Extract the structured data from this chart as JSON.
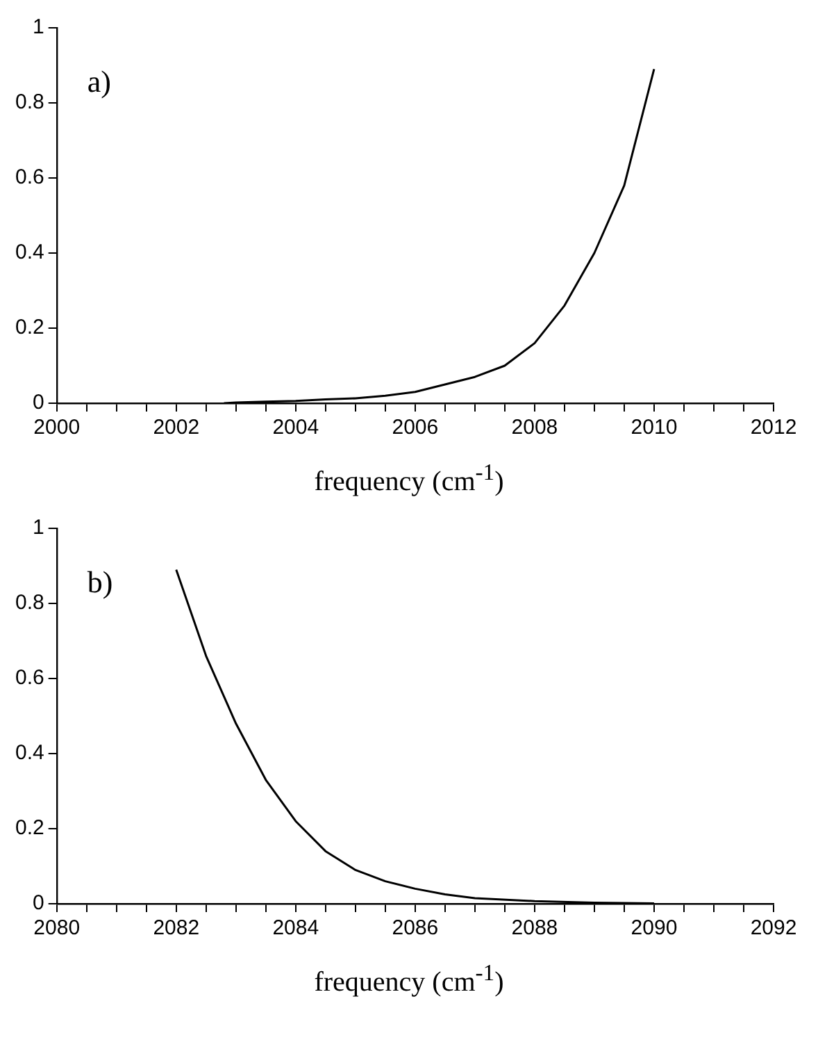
{
  "chart_data": [
    {
      "type": "line",
      "xlabel": "frequency (cm$^{-1}$)",
      "annotations": [
        "a)"
      ],
      "x": [
        2002.8,
        2003,
        2003.5,
        2004,
        2004.5,
        2005,
        2005.5,
        2006,
        2006.5,
        2007,
        2007.5,
        2008,
        2008.5,
        2009,
        2009.5,
        2010
      ],
      "series": [
        {
          "color": "#000000",
          "values": [
            0,
            0.002,
            0.004,
            0.006,
            0.01,
            0.013,
            0.02,
            0.03,
            0.05,
            0.07,
            0.1,
            0.16,
            0.26,
            0.4,
            0.58,
            0.89
          ]
        }
      ],
      "xlim": [
        2000,
        2012
      ],
      "xticks": [
        2000,
        {
          "value": 2000.5,
          "label": null
        },
        {
          "value": 2001,
          "label": null
        },
        {
          "value": 2001.5,
          "label": null
        },
        2002,
        {
          "value": 2002.5,
          "label": null
        },
        {
          "value": 2003,
          "label": null
        },
        {
          "value": 2003.5,
          "label": null
        },
        2004,
        {
          "value": 2004.5,
          "label": null
        },
        {
          "value": 2005,
          "label": null
        },
        {
          "value": 2005.5,
          "label": null
        },
        2006,
        {
          "value": 2006.5,
          "label": null
        },
        {
          "value": 2007,
          "label": null
        },
        {
          "value": 2007.5,
          "label": null
        },
        2008,
        {
          "value": 2008.5,
          "label": null
        },
        {
          "value": 2009,
          "label": null
        },
        {
          "value": 2009.5,
          "label": null
        },
        2010,
        {
          "value": 2010.5,
          "label": null
        },
        {
          "value": 2011,
          "label": null
        },
        {
          "value": 2011.5,
          "label": null
        },
        2012
      ],
      "ylim": [
        0,
        1
      ],
      "yticks": [
        0,
        0.2,
        0.4,
        0.6,
        0.8,
        1
      ],
      "grid": false,
      "legend": false,
      "marker": "none",
      "line_style": "solid"
    },
    {
      "type": "line",
      "xlabel": "frequency (cm$^{-1}$)",
      "annotations": [
        "b)"
      ],
      "x": [
        2082,
        2082.5,
        2083,
        2083.5,
        2084,
        2084.5,
        2085,
        2085.5,
        2086,
        2086.5,
        2087,
        2088,
        2089,
        2090
      ],
      "series": [
        {
          "color": "#000000",
          "values": [
            0.89,
            0.66,
            0.48,
            0.33,
            0.22,
            0.14,
            0.09,
            0.06,
            0.04,
            0.025,
            0.015,
            0.007,
            0.003,
            0.001
          ]
        }
      ],
      "xlim": [
        2080,
        2092
      ],
      "xticks": [
        2080,
        {
          "value": 2080.5,
          "label": null
        },
        {
          "value": 2081,
          "label": null
        },
        {
          "value": 2081.5,
          "label": null
        },
        2082,
        {
          "value": 2082.5,
          "label": null
        },
        {
          "value": 2083,
          "label": null
        },
        {
          "value": 2083.5,
          "label": null
        },
        2084,
        {
          "value": 2084.5,
          "label": null
        },
        {
          "value": 2085,
          "label": null
        },
        {
          "value": 2085.5,
          "label": null
        },
        2086,
        {
          "value": 2086.5,
          "label": null
        },
        {
          "value": 2087,
          "label": null
        },
        {
          "value": 2087.5,
          "label": null
        },
        2088,
        {
          "value": 2088.5,
          "label": null
        },
        {
          "value": 2089,
          "label": null
        },
        {
          "value": 2089.5,
          "label": null
        },
        2090,
        {
          "value": 2090.5,
          "label": null
        },
        {
          "value": 2091,
          "label": null
        },
        {
          "value": 2091.5,
          "label": null
        },
        2092
      ],
      "ylim": [
        0,
        1
      ],
      "yticks": [
        0,
        0.2,
        0.4,
        0.6,
        0.8,
        1
      ],
      "grid": false,
      "legend": false,
      "marker": "none",
      "line_style": "solid"
    }
  ]
}
